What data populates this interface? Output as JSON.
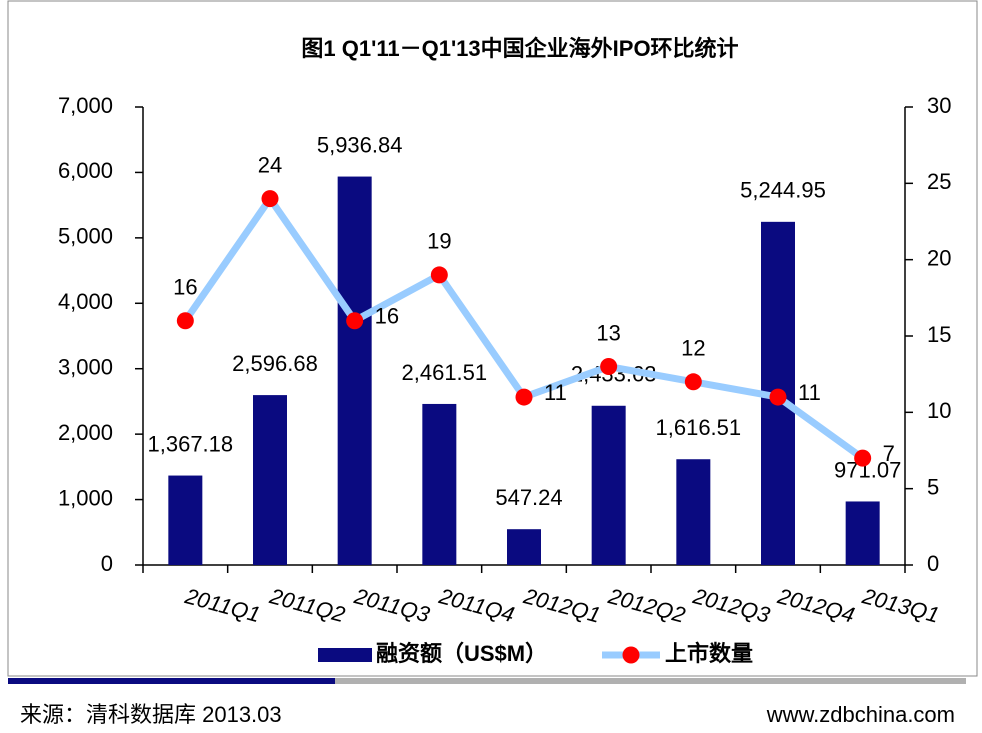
{
  "chart_data": {
    "type": "bar_line",
    "title": "图1 Q1'11－Q1'13中国企业海外IPO环比统计",
    "categories": [
      "2011Q1",
      "2011Q2",
      "2011Q3",
      "2011Q4",
      "2012Q1",
      "2012Q2",
      "2012Q3",
      "2012Q4",
      "2013Q1"
    ],
    "series": [
      {
        "name": "融资额（US$M）",
        "type": "bar",
        "color": "#0a0a80",
        "values": [
          1367.18,
          2596.68,
          5936.84,
          2461.51,
          547.24,
          2433.63,
          1616.51,
          5244.95,
          971.07
        ],
        "value_labels": [
          "1,367.18",
          "2,596.68",
          "5,936.84",
          "2,461.51",
          "547.24",
          "2,433.63",
          "1,616.51",
          "5,244.95",
          "971.07"
        ]
      },
      {
        "name": "上市数量",
        "type": "line",
        "axis": "y2",
        "color": "#99ccff",
        "marker_color": "#ff0000",
        "values": [
          16,
          24,
          16,
          19,
          11,
          13,
          12,
          11,
          7
        ]
      }
    ],
    "ylim": [
      0,
      7000
    ],
    "yticks": [
      0,
      {
        "value": 1000,
        "label": "1,000"
      },
      {
        "value": 2000,
        "label": "2,000"
      },
      {
        "value": 3000,
        "label": "3,000"
      },
      {
        "value": 4000,
        "label": "4,000"
      },
      {
        "value": 5000,
        "label": "5,000"
      },
      {
        "value": 6000,
        "label": "6,000"
      },
      {
        "value": 7000,
        "label": "7,000"
      }
    ],
    "y2lim": [
      0,
      30
    ],
    "y2ticks": [
      0,
      5,
      10,
      15,
      20,
      25,
      30
    ],
    "legend": "bottom",
    "source": "来源：清科数据库 2013.03",
    "website": "www.zdbchina.com"
  }
}
